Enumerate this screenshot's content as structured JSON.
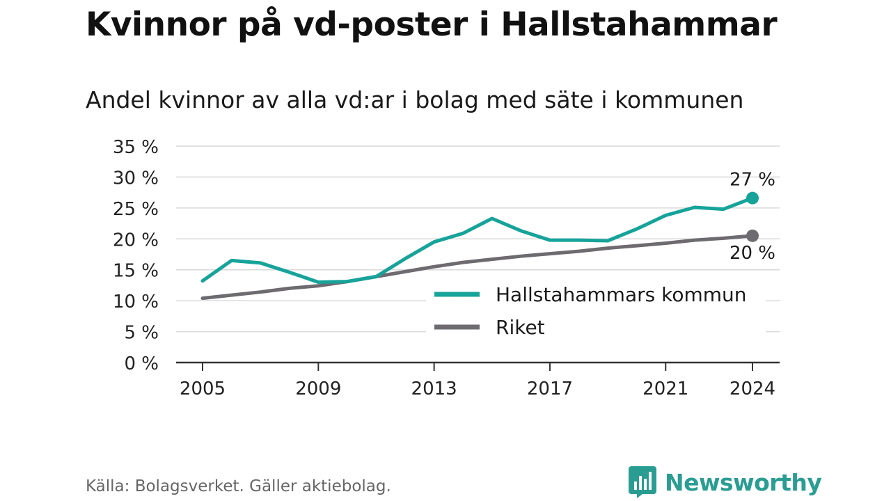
{
  "title": "Kvinnor på vd-poster i Hallstahammar",
  "subtitle": "Andel kvinnor av alla vd:ar i bolag med säte i kommunen",
  "source": "Källa: Bolagsverket. Gäller aktiebolag.",
  "brand": {
    "name": "Newsworthy",
    "icon": "newsworthy-logo-icon",
    "color": "#2a9d93"
  },
  "chart_data": {
    "type": "line",
    "title": "Kvinnor på vd-poster i Hallstahammar",
    "subtitle": "Andel kvinnor av alla vd:ar i bolag med säte i kommunen",
    "xlabel": "",
    "ylabel": "",
    "x": [
      2005,
      2006,
      2007,
      2008,
      2009,
      2010,
      2011,
      2012,
      2013,
      2014,
      2015,
      2016,
      2017,
      2018,
      2019,
      2020,
      2021,
      2022,
      2023,
      2024
    ],
    "xlim": [
      2005,
      2024
    ],
    "ylim": [
      0,
      35
    ],
    "x_ticks": [
      "2005",
      "2009",
      "2013",
      "2017",
      "2021",
      "2024"
    ],
    "y_ticks": [
      "0 %",
      "5 %",
      "10 %",
      "15 %",
      "20 %",
      "25 %",
      "30 %",
      "35 %"
    ],
    "grid": "horizontal",
    "legend_position": "bottom-right",
    "series": [
      {
        "name": "Hallstahammars kommun",
        "color": "#16a39a",
        "values": [
          13.2,
          16.5,
          16.1,
          14.6,
          13.0,
          13.1,
          13.9,
          16.8,
          19.5,
          20.9,
          23.3,
          21.3,
          19.8,
          19.8,
          19.7,
          21.6,
          23.8,
          25.1,
          24.8,
          26.6
        ],
        "end_label": "27 %"
      },
      {
        "name": "Riket",
        "color": "#6d6b70",
        "values": [
          10.4,
          10.9,
          11.4,
          12.0,
          12.4,
          13.1,
          13.9,
          14.7,
          15.5,
          16.2,
          16.7,
          17.2,
          17.6,
          18.0,
          18.5,
          18.9,
          19.3,
          19.8,
          20.1,
          20.5
        ],
        "end_label": "20 %"
      }
    ]
  }
}
